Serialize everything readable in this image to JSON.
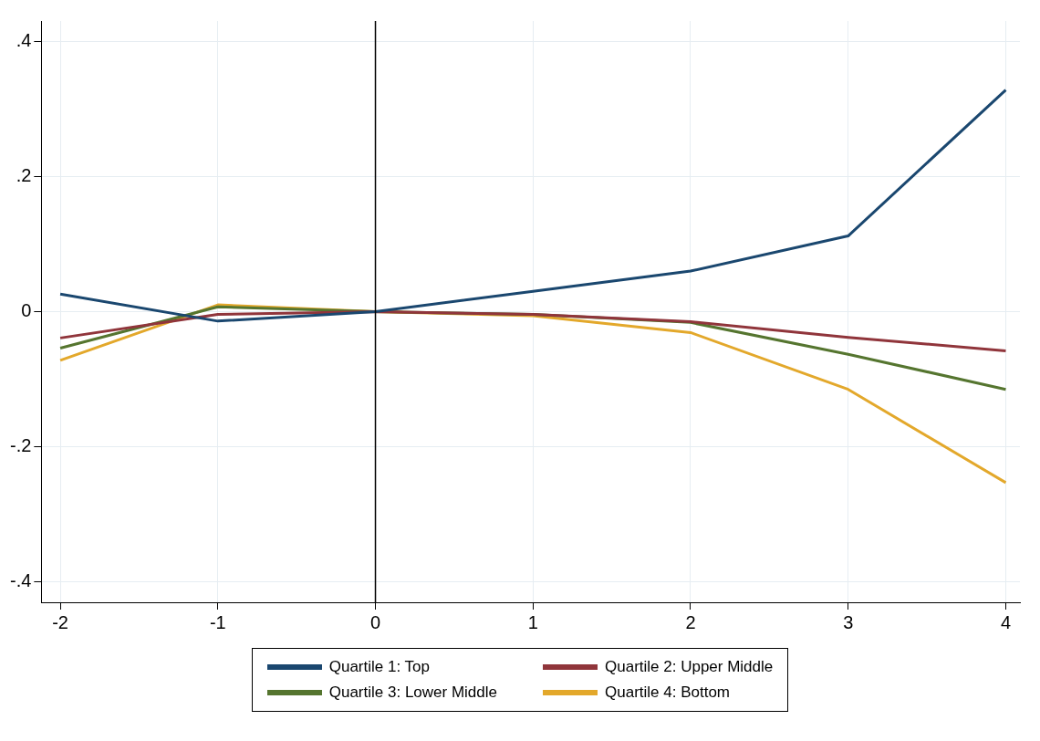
{
  "chart_data": {
    "type": "line",
    "x": [
      -2,
      -1,
      0,
      1,
      2,
      3,
      4
    ],
    "series": [
      {
        "name": "Quartile 1: Top",
        "color": "#1a476f",
        "values": [
          0.026,
          -0.014,
          0,
          0.03,
          0.06,
          0.112,
          0.328
        ]
      },
      {
        "name": "Quartile 2: Upper Middle",
        "color": "#90353b",
        "values": [
          -0.039,
          -0.004,
          0,
          -0.004,
          -0.015,
          -0.038,
          -0.058
        ]
      },
      {
        "name": "Quartile 3: Lower Middle",
        "color": "#55752f",
        "values": [
          -0.054,
          0.007,
          0,
          -0.004,
          -0.016,
          -0.063,
          -0.115
        ]
      },
      {
        "name": "Quartile 4: Bottom",
        "color": "#e3a82b",
        "values": [
          -0.072,
          0.01,
          0,
          -0.006,
          -0.031,
          -0.115,
          -0.253
        ]
      }
    ],
    "xlim": [
      -2.12,
      4.09
    ],
    "xticks": [
      -2,
      -1,
      0,
      1,
      2,
      3,
      4
    ],
    "ylim": [
      -0.43,
      0.43
    ],
    "yticks": [
      {
        "value": -0.4,
        "label": "-.4"
      },
      {
        "value": -0.2,
        "label": "-.2"
      },
      0,
      {
        "value": 0.2,
        "label": ".2"
      },
      {
        "value": 0.4,
        "label": ".4"
      }
    ],
    "ref_lines": [
      {
        "axis": "x",
        "value": 0,
        "color": "#000000"
      }
    ],
    "grid": true,
    "legend": "bottom",
    "marker": "none",
    "line_style": "solid"
  }
}
